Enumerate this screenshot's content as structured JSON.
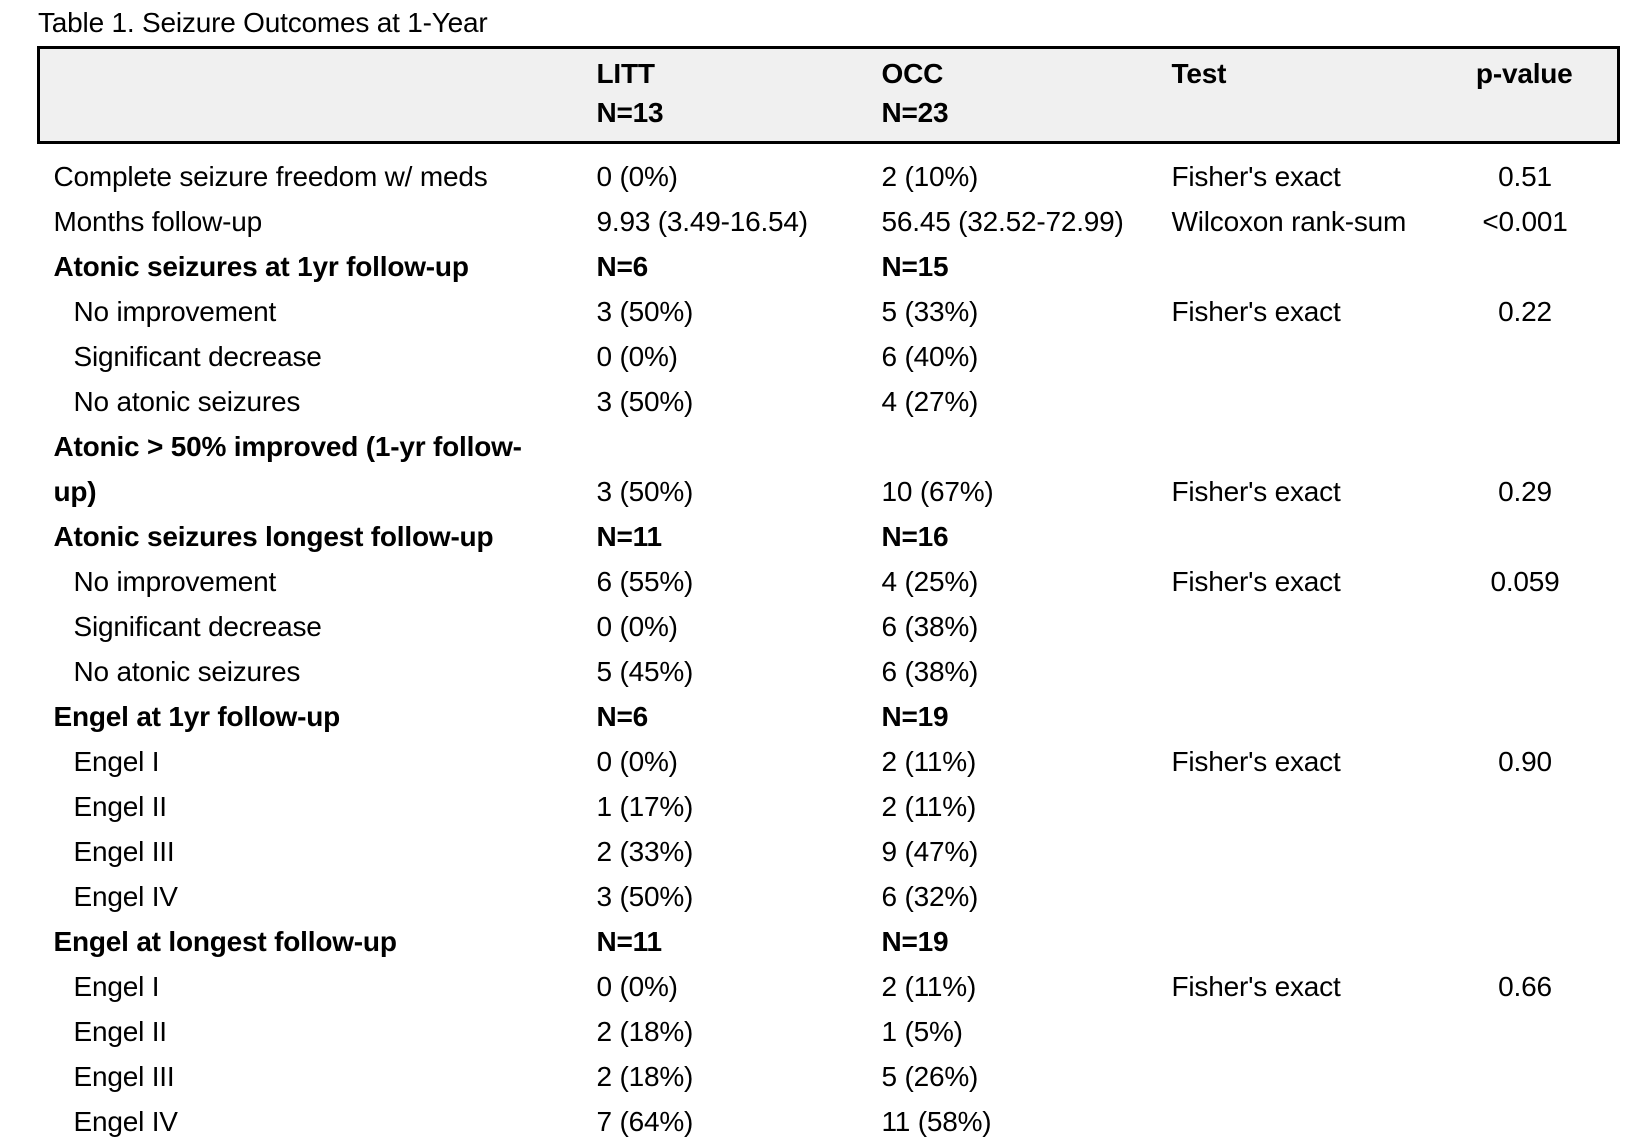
{
  "title": "Table 1. Seizure Outcomes at 1-Year",
  "colors": {
    "header_bg": "#f0f0f0",
    "border": "#000000",
    "text": "#000000",
    "background": "#ffffff"
  },
  "table": {
    "header": {
      "litt": {
        "name": "LITT",
        "n": "N=13"
      },
      "occ": {
        "name": "OCC",
        "n": "N=23"
      },
      "test": "Test",
      "p": "p-value"
    },
    "rows": [
      {
        "label": "Complete seizure freedom w/ meds",
        "litt": "0 (0%)",
        "occ": "2 (10%)",
        "test": "Fisher's exact",
        "p": "0.51",
        "style": "normal"
      },
      {
        "label": "Months follow-up",
        "litt": "9.93 (3.49-16.54)",
        "occ": "56.45 (32.52-72.99)",
        "test": "Wilcoxon rank-sum",
        "p": "<0.001",
        "style": "normal"
      },
      {
        "label": "Atonic seizures at 1yr follow-up",
        "litt": "N=6",
        "occ": "N=15",
        "test": "",
        "p": "",
        "style": "bold"
      },
      {
        "label": "No improvement",
        "litt": "3 (50%)",
        "occ": "5 (33%)",
        "test": "Fisher's exact",
        "p": "0.22",
        "style": "sub"
      },
      {
        "label": "Significant decrease",
        "litt": "0 (0%)",
        "occ": "6 (40%)",
        "test": "",
        "p": "",
        "style": "sub"
      },
      {
        "label": "No atonic seizures",
        "litt": "3 (50%)",
        "occ": "4 (27%)",
        "test": "",
        "p": "",
        "style": "sub"
      },
      {
        "label": "Atonic > 50% improved (1-yr follow-\nup)",
        "litt": "3 (50%)",
        "occ": "10 (67%)",
        "test": "Fisher's exact",
        "p": "0.29",
        "style": "boldlabel"
      },
      {
        "label": "Atonic seizures longest follow-up",
        "litt": "N=11",
        "occ": "N=16",
        "test": "",
        "p": "",
        "style": "bold"
      },
      {
        "label": "No improvement",
        "litt": "6 (55%)",
        "occ": "4 (25%)",
        "test": "Fisher's exact",
        "p": "0.059",
        "style": "sub"
      },
      {
        "label": "Significant decrease",
        "litt": "0 (0%)",
        "occ": "6 (38%)",
        "test": "",
        "p": "",
        "style": "sub"
      },
      {
        "label": "No atonic seizures",
        "litt": "5 (45%)",
        "occ": "6 (38%)",
        "test": "",
        "p": "",
        "style": "sub"
      },
      {
        "label": "Engel at 1yr follow-up",
        "litt": "N=6",
        "occ": "N=19",
        "test": "",
        "p": "",
        "style": "bold"
      },
      {
        "label": "Engel I",
        "litt": "0 (0%)",
        "occ": "2 (11%)",
        "test": "Fisher's exact",
        "p": "0.90",
        "style": "sub"
      },
      {
        "label": "Engel II",
        "litt": "1 (17%)",
        "occ": "2 (11%)",
        "test": "",
        "p": "",
        "style": "sub"
      },
      {
        "label": "Engel III",
        "litt": "2 (33%)",
        "occ": "9 (47%)",
        "test": "",
        "p": "",
        "style": "sub"
      },
      {
        "label": "Engel IV",
        "litt": "3 (50%)",
        "occ": "6 (32%)",
        "test": "",
        "p": "",
        "style": "sub"
      },
      {
        "label": "Engel at longest follow-up",
        "litt": "N=11",
        "occ": "N=19",
        "test": "",
        "p": "",
        "style": "bold"
      },
      {
        "label": "Engel I",
        "litt": "0 (0%)",
        "occ": "2 (11%)",
        "test": "Fisher's exact",
        "p": "0.66",
        "style": "sub"
      },
      {
        "label": "Engel II",
        "litt": "2 (18%)",
        "occ": "1 (5%)",
        "test": "",
        "p": "",
        "style": "sub"
      },
      {
        "label": "Engel III",
        "litt": "2 (18%)",
        "occ": "5 (26%)",
        "test": "",
        "p": "",
        "style": "sub"
      },
      {
        "label": "Engel IV",
        "litt": "7 (64%)",
        "occ": "11 (58%)",
        "test": "",
        "p": "",
        "style": "sub"
      }
    ]
  }
}
